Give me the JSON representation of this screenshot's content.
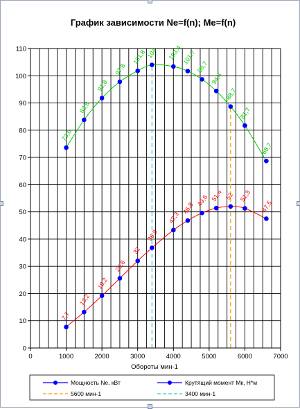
{
  "chart_data": {
    "type": "line",
    "title": "График зависимости Ne=f(n);  Me=f(n)",
    "xlabel": "Обороты мин-1",
    "ylabel": "",
    "xlim": [
      0,
      7000
    ],
    "ylim": [
      0,
      110
    ],
    "x_ticks": [
      0,
      1000,
      2000,
      3000,
      4000,
      5000,
      6000,
      7000
    ],
    "y_ticks": [
      0,
      10,
      20,
      30,
      40,
      50,
      60,
      70,
      80,
      90,
      100,
      110
    ],
    "x_minor_step": 250,
    "y_major_step": 10,
    "grid": true,
    "legend_position": "bottom",
    "series": [
      {
        "name": "Мощность Ne, кВт",
        "color": "#0000ff",
        "curve_color": "#ff0000",
        "x": [
          1000,
          1500,
          2000,
          2500,
          3000,
          3400,
          4000,
          4400,
          4800,
          5200,
          5600,
          6000,
          6600
        ],
        "values": [
          7.7,
          13.2,
          19.2,
          25.6,
          32,
          36.8,
          43.3,
          46.8,
          49.6,
          51.4,
          52,
          51.3,
          47.5
        ],
        "labels": [
          "7,7",
          "13,2",
          "19,2",
          "25,6",
          "32",
          "36,8",
          "43,3",
          "46,8",
          "49,6",
          "51,4",
          "52",
          "51,3",
          "47,5"
        ],
        "label_color": "#ff0000"
      },
      {
        "name": "Крутящий момент Мк, Н*м",
        "color": "#0000ff",
        "curve_color": "#00cc00",
        "x": [
          1000,
          1500,
          2000,
          2500,
          3000,
          3400,
          4000,
          4400,
          4800,
          5200,
          5600,
          6000,
          6600
        ],
        "values": [
          73.6,
          83.8,
          91.8,
          97.8,
          101.8,
          104,
          103.4,
          101.7,
          98.7,
          94.4,
          88.7,
          81.7,
          68.7
        ],
        "labels": [
          "73,6",
          "83,8",
          "91,8",
          "97,8",
          "101,8",
          "104",
          "103,4",
          "101,7",
          "98,7",
          "94,4",
          "88,7",
          "81,7",
          "68,7"
        ],
        "label_color": "#00cc00"
      },
      {
        "name": "5600 мин-1",
        "color": "#ff9900",
        "x": [
          5600,
          5600
        ],
        "values": [
          0,
          88.7
        ]
      },
      {
        "name": "3400 мин-1",
        "color": "#33cccc",
        "x": [
          3400,
          3400
        ],
        "values": [
          0,
          104
        ]
      }
    ]
  }
}
